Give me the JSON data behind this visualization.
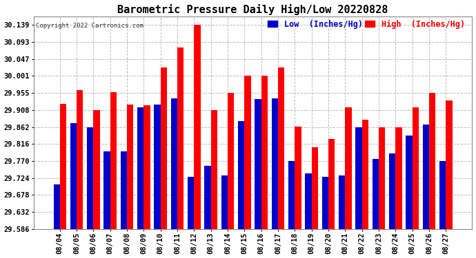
{
  "title": "Barometric Pressure Daily High/Low 20220828",
  "copyright": "Copyright 2022 Cartronics.com",
  "legend_low": "Low  (Inches/Hg)",
  "legend_high": "High  (Inches/Hg)",
  "dates": [
    "08/04",
    "08/05",
    "08/06",
    "08/07",
    "08/08",
    "08/09",
    "08/10",
    "08/11",
    "08/12",
    "08/13",
    "08/14",
    "08/15",
    "08/16",
    "08/17",
    "08/18",
    "08/19",
    "08/20",
    "08/21",
    "08/22",
    "08/23",
    "08/24",
    "08/25",
    "08/26",
    "08/27"
  ],
  "high_values": [
    29.926,
    29.962,
    29.908,
    29.956,
    29.924,
    29.922,
    30.024,
    30.079,
    30.139,
    29.908,
    29.955,
    30.001,
    30.001,
    30.024,
    29.864,
    29.808,
    29.83,
    29.916,
    29.882,
    29.862,
    29.862,
    29.916,
    29.955,
    29.935
  ],
  "low_values": [
    29.706,
    29.872,
    29.862,
    29.796,
    29.796,
    29.916,
    29.924,
    29.94,
    29.728,
    29.758,
    29.731,
    29.878,
    29.939,
    29.94,
    29.77,
    29.736,
    29.728,
    29.731,
    29.862,
    29.775,
    29.79,
    29.84,
    29.87,
    29.77
  ],
  "ylim_min": 29.586,
  "ylim_max": 30.162,
  "yticks": [
    29.586,
    29.632,
    29.678,
    29.724,
    29.77,
    29.816,
    29.862,
    29.908,
    29.955,
    30.001,
    30.047,
    30.093,
    30.139
  ],
  "bar_width": 0.38,
  "high_color": "#ff0000",
  "low_color": "#0000cc",
  "bg_color": "#ffffff",
  "grid_color": "#bbbbbb",
  "title_color": "#000000",
  "title_fontsize": 11,
  "tick_fontsize": 7.5,
  "legend_fontsize": 8.5
}
